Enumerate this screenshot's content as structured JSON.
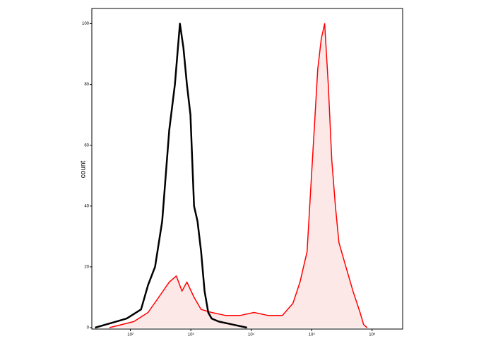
{
  "chart_data": {
    "type": "line",
    "y_label": "count",
    "xscale": "log",
    "xlim": [
      23,
      3200000
    ],
    "ylim": [
      0,
      105
    ],
    "xticks": [
      {
        "value": 100,
        "label": "10²"
      },
      {
        "value": 1000,
        "label": "10³"
      },
      {
        "value": 10000,
        "label": "10⁴"
      },
      {
        "value": 100000,
        "label": "10⁵"
      },
      {
        "value": 1000000,
        "label": "10⁶"
      }
    ],
    "yticks": [
      0,
      20,
      40,
      60,
      80,
      100
    ],
    "series": [
      {
        "color": "#000000",
        "fill": null,
        "x": [
          26,
          39,
          58,
          87,
          150,
          196,
          256,
          336,
          440,
          545,
          659,
          754,
          862,
          986,
          1130,
          1290,
          1480,
          1690,
          1940,
          2210,
          2900,
          4970,
          8510
        ],
        "values": [
          0,
          1,
          2,
          3,
          6,
          14,
          20,
          35,
          65,
          80,
          100,
          92,
          80,
          70,
          40,
          35,
          25,
          12,
          5,
          3,
          2,
          1,
          0
        ]
      },
      {
        "color": "#ff0000",
        "fill": "#fde8e8",
        "x": [
          45,
          114,
          196,
          294,
          440,
          575,
          714,
          862,
          1130,
          1480,
          2210,
          3790,
          6500,
          11100,
          19100,
          32700,
          49000,
          64100,
          83900,
          96000,
          110000,
          126000,
          144000,
          164000,
          188000,
          215000,
          247000,
          282000,
          369000,
          483000,
          632000,
          724000,
          828000
        ],
        "values": [
          0,
          2,
          5,
          10,
          15,
          17,
          12,
          15,
          10,
          6,
          5,
          4,
          4,
          5,
          4,
          4,
          8,
          15,
          25,
          45,
          65,
          85,
          95,
          100,
          80,
          55,
          40,
          28,
          20,
          12,
          5,
          1,
          0
        ]
      }
    ]
  }
}
